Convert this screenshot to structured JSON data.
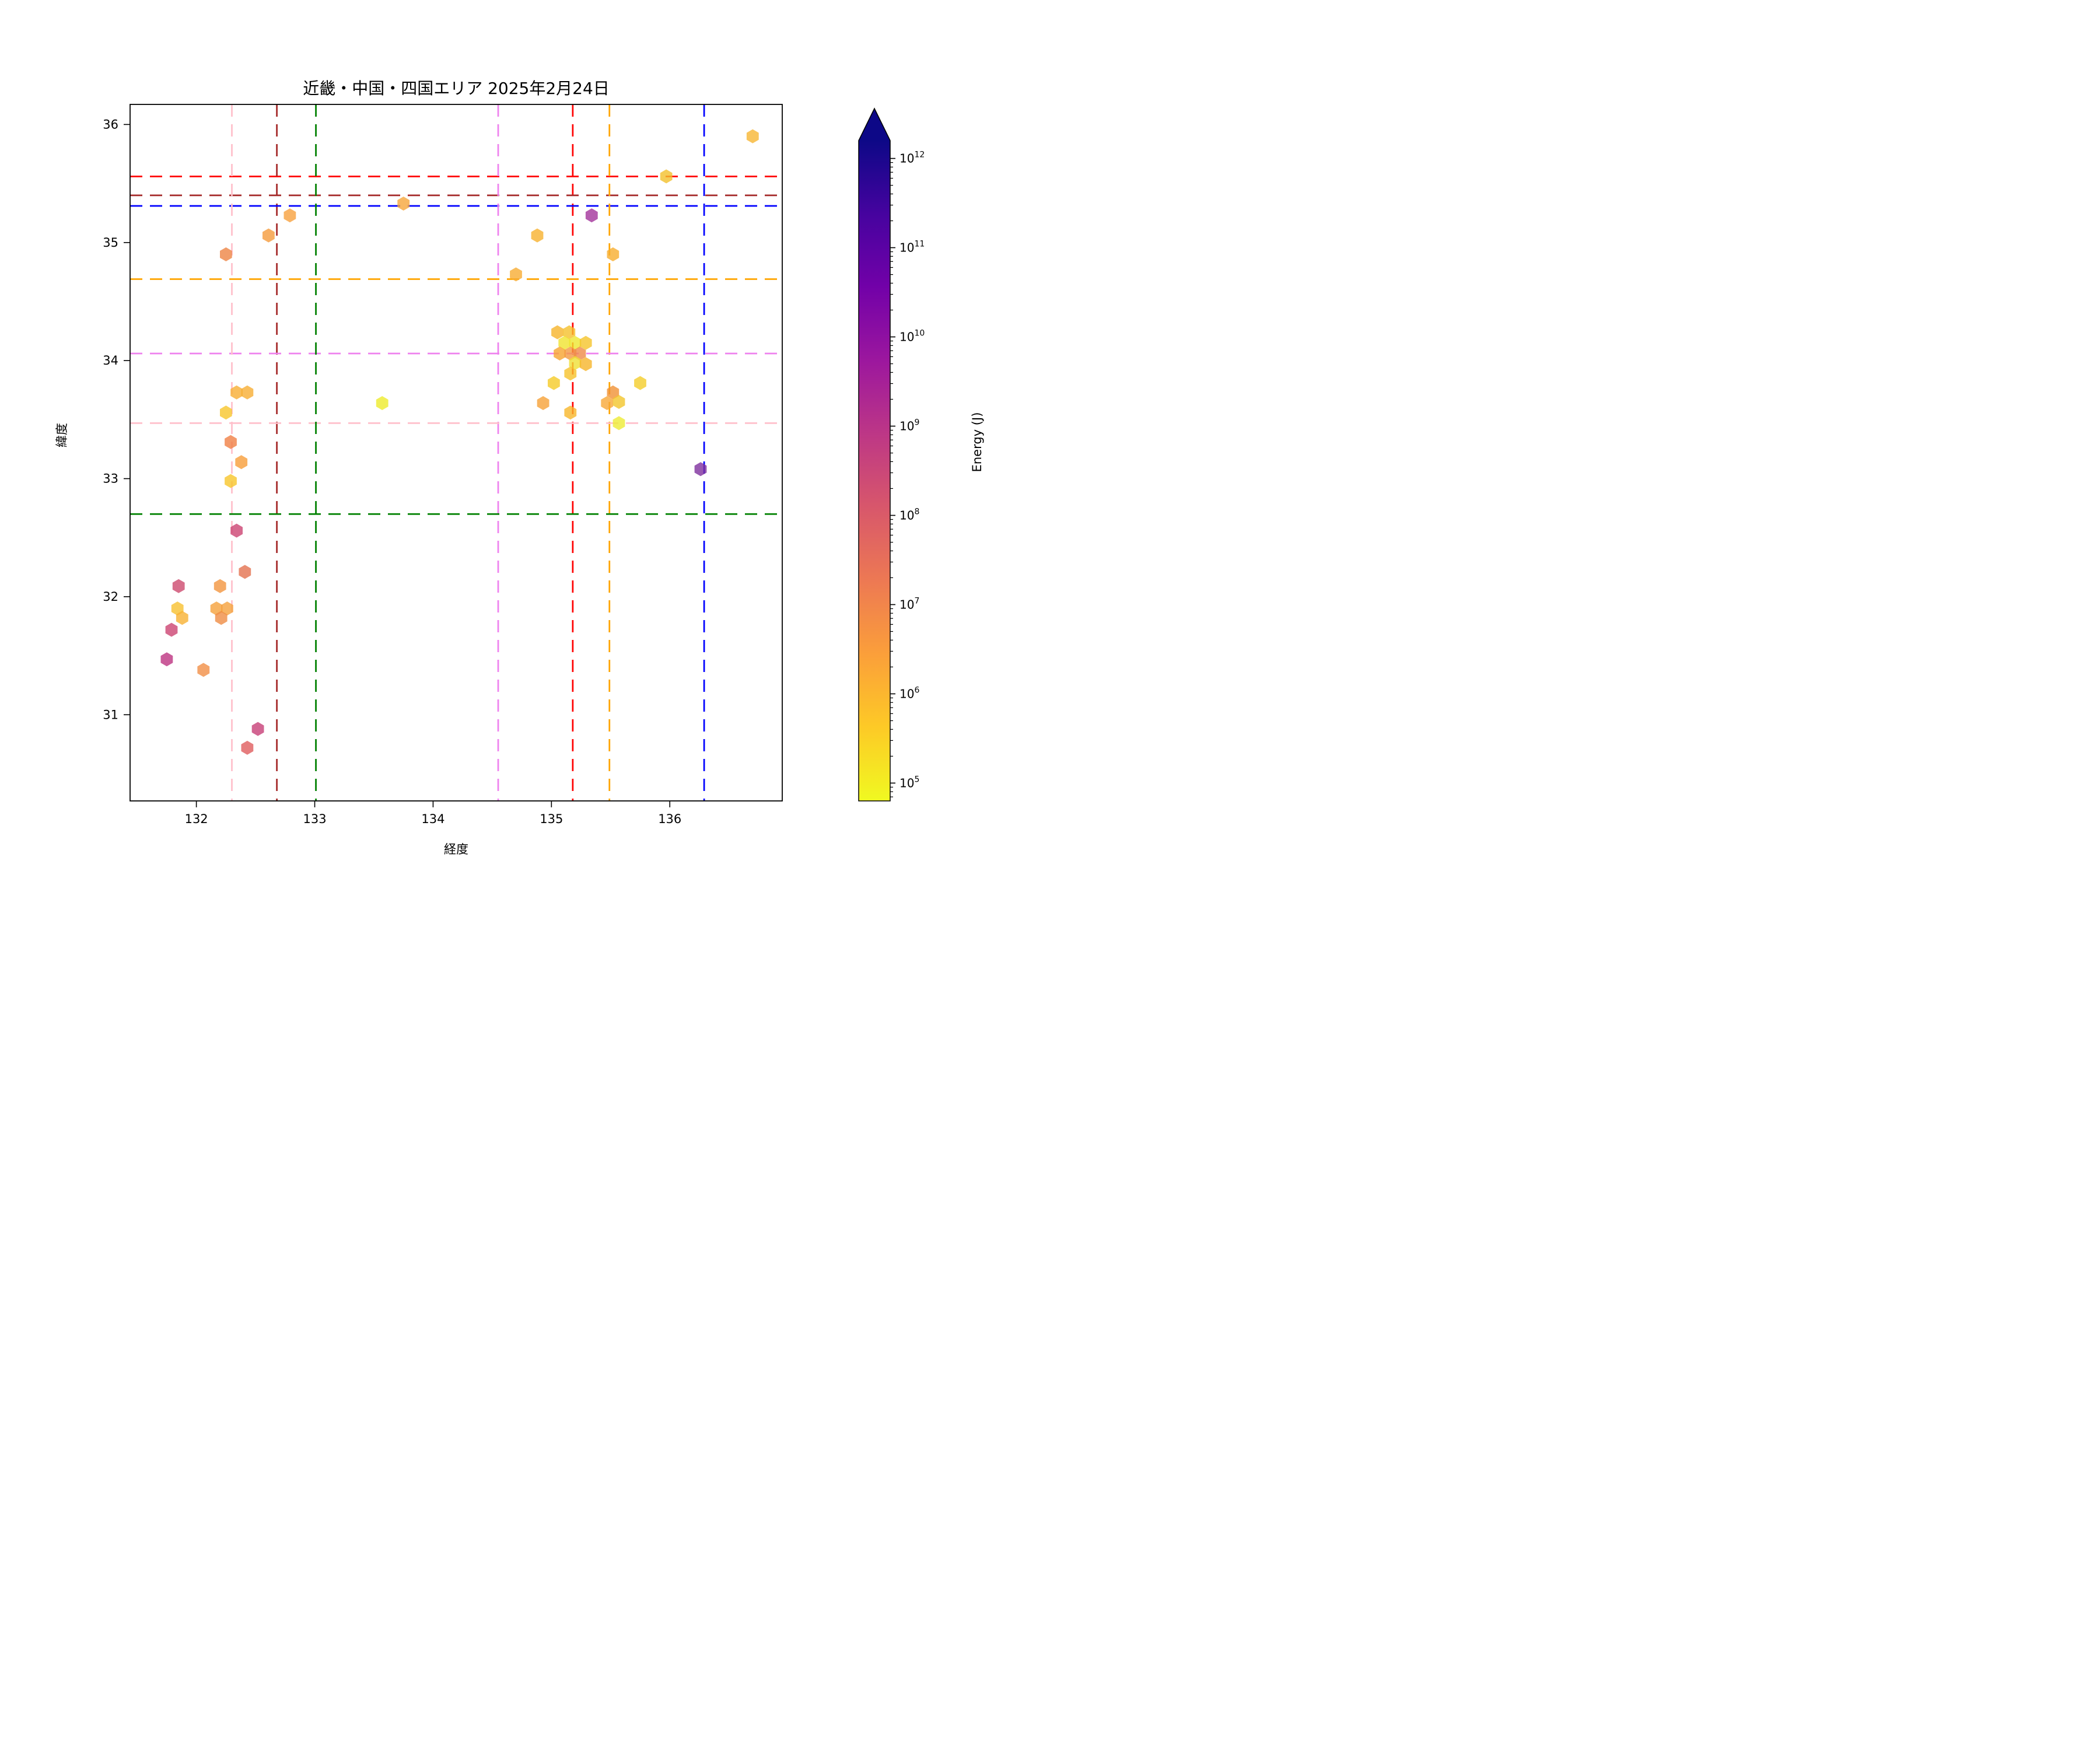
{
  "title": "近畿・中国・四国エリア 2025年2月24日",
  "chart_data": {
    "type": "scatter",
    "marker": "hexagon",
    "marker_alpha": 0.8,
    "title": "近畿・中国・四国エリア 2025年2月24日",
    "xlabel": "経度",
    "ylabel": "緯度",
    "xlim": [
      131.44,
      136.95
    ],
    "ylim": [
      30.27,
      36.17
    ],
    "x_ticks": [
      "132",
      "133",
      "134",
      "135",
      "136"
    ],
    "x_tick_values": [
      132,
      133,
      134,
      135,
      136
    ],
    "y_ticks": [
      "31",
      "32",
      "33",
      "34",
      "35",
      "36"
    ],
    "y_tick_values": [
      31,
      32,
      33,
      34,
      35,
      36
    ],
    "grid": false,
    "reference_lines": [
      {
        "name": "red-cross",
        "color": "#ff0000",
        "lon": 135.18,
        "lat": 35.56
      },
      {
        "name": "brown-cross",
        "color": "#a52a2a",
        "lon": 132.68,
        "lat": 35.4
      },
      {
        "name": "blue-cross",
        "color": "#0000ff",
        "lon": 136.29,
        "lat": 35.31
      },
      {
        "name": "orange-cross",
        "color": "#ffa500",
        "lon": 135.49,
        "lat": 34.69
      },
      {
        "name": "violet-cross",
        "color": "#ee82ee",
        "lon": 134.55,
        "lat": 34.06
      },
      {
        "name": "pink-cross",
        "color": "#ffc0cb",
        "lon": 132.3,
        "lat": 33.47
      },
      {
        "name": "green-cross",
        "color": "#008000",
        "lon": 133.01,
        "lat": 32.7
      }
    ],
    "points": [
      {
        "lon": 136.7,
        "lat": 35.9,
        "energy": 700000,
        "color": "#f7b733"
      },
      {
        "lon": 135.97,
        "lat": 35.56,
        "energy": 350000,
        "color": "#f3c12c"
      },
      {
        "lon": 135.34,
        "lat": 35.23,
        "energy": 2000000000,
        "color": "#a2339b"
      },
      {
        "lon": 133.75,
        "lat": 35.33,
        "energy": 1200000,
        "color": "#f6a63b"
      },
      {
        "lon": 132.79,
        "lat": 35.23,
        "energy": 1500000,
        "color": "#f8a13e"
      },
      {
        "lon": 132.61,
        "lat": 35.06,
        "energy": 2000000,
        "color": "#f59b3c"
      },
      {
        "lon": 132.25,
        "lat": 34.9,
        "energy": 5000000,
        "color": "#ee8445"
      },
      {
        "lon": 134.88,
        "lat": 35.06,
        "energy": 700000,
        "color": "#f7b12e"
      },
      {
        "lon": 135.52,
        "lat": 34.9,
        "energy": 800000,
        "color": "#f8ae2e"
      },
      {
        "lon": 134.7,
        "lat": 34.73,
        "energy": 900000,
        "color": "#f8ac33"
      },
      {
        "lon": 136.26,
        "lat": 33.08,
        "energy": 12000000000,
        "color": "#7e2f9e"
      },
      {
        "lon": 135.05,
        "lat": 34.24,
        "energy": 600000,
        "color": "#f6b42b"
      },
      {
        "lon": 135.15,
        "lat": 34.24,
        "energy": 400000,
        "color": "#f5c02c"
      },
      {
        "lon": 135.11,
        "lat": 34.15,
        "energy": 120000,
        "color": "#f0e32e"
      },
      {
        "lon": 135.2,
        "lat": 34.15,
        "energy": 100000,
        "color": "#ede72f"
      },
      {
        "lon": 135.29,
        "lat": 34.15,
        "energy": 350000,
        "color": "#f5c42a"
      },
      {
        "lon": 135.07,
        "lat": 34.06,
        "energy": 1300000,
        "color": "#f6a42f"
      },
      {
        "lon": 135.16,
        "lat": 34.06,
        "energy": 2200000,
        "color": "#f39a41"
      },
      {
        "lon": 135.24,
        "lat": 34.06,
        "energy": 4000000,
        "color": "#ef8a47"
      },
      {
        "lon": 135.2,
        "lat": 33.98,
        "energy": 110000,
        "color": "#efe035"
      },
      {
        "lon": 135.29,
        "lat": 33.97,
        "energy": 600000,
        "color": "#f6b52b"
      },
      {
        "lon": 135.16,
        "lat": 33.89,
        "energy": 350000,
        "color": "#f6c22b"
      },
      {
        "lon": 135.75,
        "lat": 33.81,
        "energy": 250000,
        "color": "#f4cd2a"
      },
      {
        "lon": 135.02,
        "lat": 33.81,
        "energy": 280000,
        "color": "#f5cb27"
      },
      {
        "lon": 134.93,
        "lat": 33.64,
        "energy": 1500000,
        "color": "#f6a137"
      },
      {
        "lon": 135.52,
        "lat": 33.73,
        "energy": 3000000,
        "color": "#f09135"
      },
      {
        "lon": 135.47,
        "lat": 33.64,
        "energy": 1200000,
        "color": "#f7a837"
      },
      {
        "lon": 135.57,
        "lat": 33.65,
        "energy": 350000,
        "color": "#f3c52c"
      },
      {
        "lon": 135.16,
        "lat": 33.56,
        "energy": 600000,
        "color": "#f7b62a"
      },
      {
        "lon": 135.57,
        "lat": 33.47,
        "energy": 80000,
        "color": "#edeb34"
      },
      {
        "lon": 133.57,
        "lat": 33.64,
        "energy": 80000,
        "color": "#eeeb2c"
      },
      {
        "lon": 132.34,
        "lat": 33.73,
        "energy": 800000,
        "color": "#f8ae33"
      },
      {
        "lon": 132.43,
        "lat": 33.73,
        "energy": 800000,
        "color": "#f8ae33"
      },
      {
        "lon": 132.25,
        "lat": 33.56,
        "energy": 300000,
        "color": "#f8c62b"
      },
      {
        "lon": 132.29,
        "lat": 33.31,
        "energy": 6000000,
        "color": "#f08045"
      },
      {
        "lon": 132.38,
        "lat": 33.14,
        "energy": 1800000,
        "color": "#f79d3a"
      },
      {
        "lon": 132.29,
        "lat": 32.98,
        "energy": 300000,
        "color": "#f8c62b"
      },
      {
        "lon": 132.34,
        "lat": 32.56,
        "energy": 120000000,
        "color": "#cc4372"
      },
      {
        "lon": 132.41,
        "lat": 32.21,
        "energy": 13000000,
        "color": "#e4724f"
      },
      {
        "lon": 131.85,
        "lat": 32.09,
        "energy": 100000000,
        "color": "#cd4a6e"
      },
      {
        "lon": 132.2,
        "lat": 32.09,
        "energy": 2500000,
        "color": "#f2953f"
      },
      {
        "lon": 131.84,
        "lat": 31.9,
        "energy": 400000,
        "color": "#f8c030"
      },
      {
        "lon": 131.88,
        "lat": 31.82,
        "energy": 700000,
        "color": "#f8b133"
      },
      {
        "lon": 132.17,
        "lat": 31.9,
        "energy": 1500000,
        "color": "#f5a13c"
      },
      {
        "lon": 132.26,
        "lat": 31.9,
        "energy": 1500000,
        "color": "#f5a13c"
      },
      {
        "lon": 132.21,
        "lat": 31.82,
        "energy": 4000000,
        "color": "#ef8c44"
      },
      {
        "lon": 131.79,
        "lat": 31.72,
        "energy": 120000000,
        "color": "#cc4372"
      },
      {
        "lon": 131.75,
        "lat": 31.47,
        "energy": 300000000,
        "color": "#bd3381"
      },
      {
        "lon": 132.06,
        "lat": 31.38,
        "energy": 3000000,
        "color": "#f18f46"
      },
      {
        "lon": 132.52,
        "lat": 30.88,
        "energy": 200000000,
        "color": "#c73e77"
      },
      {
        "lon": 132.43,
        "lat": 30.72,
        "energy": 30000000,
        "color": "#e05d5e"
      }
    ],
    "colorbar": {
      "label": "Energy (J)",
      "scale": "log",
      "log_min": 4.8,
      "log_max": 12.2,
      "extend": "max",
      "colormap": "plasma_r",
      "tick_exponents": [
        12,
        11,
        10,
        9,
        8,
        7,
        6,
        5
      ],
      "gradient_top_to_bottom": [
        "#0d0887",
        "#46039f",
        "#7201a8",
        "#9c179e",
        "#bd3786",
        "#d8576b",
        "#ed7953",
        "#fb9f3a",
        "#fdca26",
        "#f0f921"
      ]
    }
  }
}
